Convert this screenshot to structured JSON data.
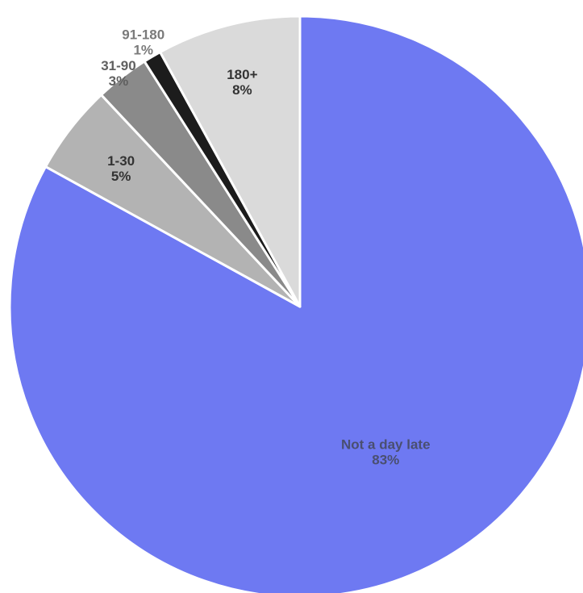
{
  "chart_data": {
    "type": "pie",
    "title": "",
    "start": "12 o'clock",
    "direction": "clockwise",
    "slices": [
      {
        "label": "Not a day late",
        "value": 83,
        "display": "83%",
        "color": "#6E79F2",
        "label_color": "#4A4F70",
        "label_placement": "inside"
      },
      {
        "label": "1-30",
        "value": 5,
        "display": "5%",
        "color": "#B3B3B3",
        "label_color": "#333333",
        "label_placement": "inside"
      },
      {
        "label": "31-90",
        "value": 3,
        "display": "3%",
        "color": "#8A8A8A",
        "label_color": "#606060",
        "label_placement": "outside"
      },
      {
        "label": "91-180",
        "value": 1,
        "display": "1%",
        "color": "#1C1C1C",
        "label_color": "#7A7A7A",
        "label_placement": "outside"
      },
      {
        "label": "180+",
        "value": 8,
        "display": "8%",
        "color": "#DADADA",
        "label_color": "#333333",
        "label_placement": "inside"
      }
    ]
  }
}
